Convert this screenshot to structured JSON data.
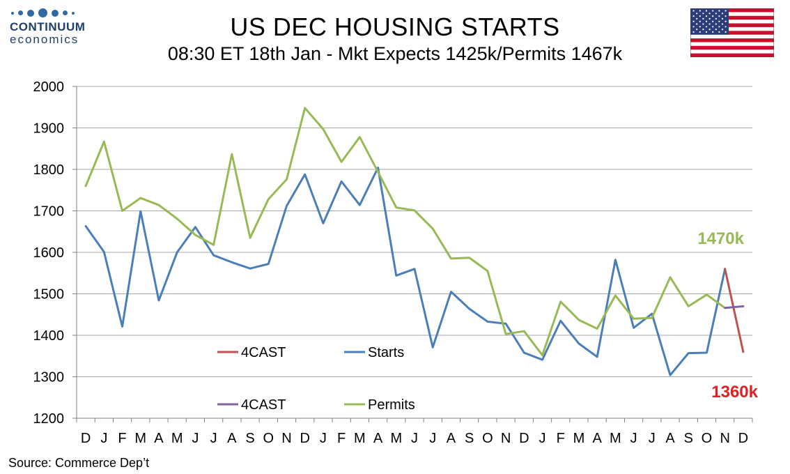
{
  "header": {
    "title": "US DEC HOUSING STARTS",
    "subtitle": "08:30 ET 18th Jan - Mkt Expects 1425k/Permits 1467k"
  },
  "logo": {
    "line1": "CONTINUUM",
    "line2": "economics"
  },
  "source": "Source: Commerce Dep’t",
  "chart_data": {
    "type": "line",
    "title": "US DEC HOUSING STARTS",
    "subtitle": "08:30 ET 18th Jan - Mkt Expects 1425k/Permits 1467k",
    "categories": [
      "D",
      "J",
      "F",
      "M",
      "A",
      "M",
      "J",
      "J",
      "A",
      "S",
      "O",
      "N",
      "D",
      "J",
      "F",
      "M",
      "A",
      "M",
      "J",
      "J",
      "A",
      "S",
      "O",
      "N",
      "D",
      "J",
      "F",
      "M",
      "A",
      "M",
      "J",
      "J",
      "A",
      "S",
      "O",
      "N",
      "D"
    ],
    "ylim": [
      1200,
      2000
    ],
    "yticks": [
      1200,
      1300,
      1400,
      1500,
      1600,
      1700,
      1800,
      1900,
      2000
    ],
    "grid": true,
    "series": [
      {
        "name": "Starts",
        "color": "#4a7ebb",
        "values": [
          1663,
          1601,
          1421,
          1699,
          1484,
          1600,
          1661,
          1593,
          1576,
          1561,
          1572,
          1712,
          1788,
          1670,
          1771,
          1714,
          1804,
          1544,
          1560,
          1371,
          1505,
          1464,
          1433,
          1428,
          1358,
          1341,
          1435,
          1380,
          1348,
          1582,
          1418,
          1452,
          1304,
          1357,
          1358,
          1560,
          null
        ]
      },
      {
        "name": "Permits",
        "color": "#98b954",
        "values": [
          1760,
          1867,
          1700,
          1731,
          1714,
          1681,
          1642,
          1618,
          1837,
          1635,
          1728,
          1776,
          1948,
          1897,
          1818,
          1878,
          1794,
          1708,
          1701,
          1657,
          1585,
          1587,
          1555,
          1403,
          1410,
          1352,
          1481,
          1437,
          1416,
          1496,
          1440,
          1442,
          1540,
          1470,
          1498,
          1466,
          null
        ]
      },
      {
        "name": "4CAST",
        "color": "#c0504d",
        "values_sparse": {
          "35": 1560,
          "36": 1360
        }
      },
      {
        "name": "4CAST",
        "color": "#8064a2",
        "values_sparse": {
          "35": 1466,
          "36": 1470
        }
      }
    ],
    "legend": [
      {
        "label": "4CAST",
        "color": "#c0504d"
      },
      {
        "label": "Starts",
        "color": "#4a7ebb"
      },
      {
        "label": "4CAST",
        "color": "#8064a2"
      },
      {
        "label": "Permits",
        "color": "#98b954"
      }
    ],
    "legend_placement": "lower-center",
    "annotations": [
      {
        "text": "1470k",
        "color": "#98b954"
      },
      {
        "text": "1360k",
        "color": "#e02020"
      }
    ]
  }
}
